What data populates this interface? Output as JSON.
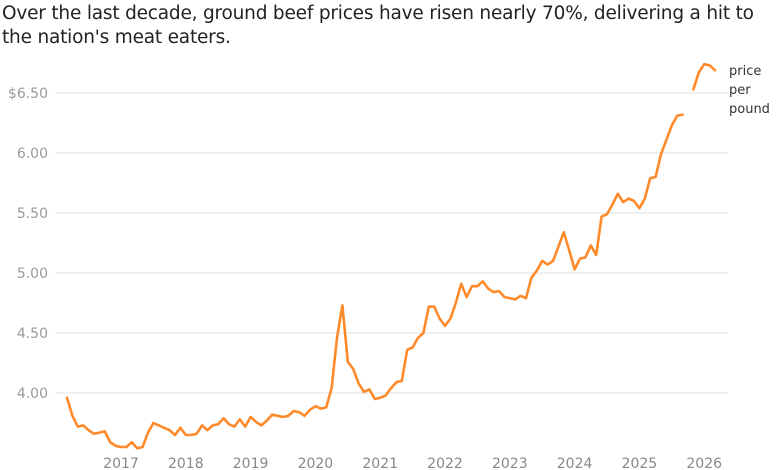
{
  "title": "Over the last decade, ground beef prices have risen nearly 70%, delivering a hit to the nation's meat eaters.",
  "chart_data": {
    "type": "line",
    "title": "Over the last decade, ground beef prices have risen nearly 70%, delivering a hit to the nation's meat eaters.",
    "xlabel": "",
    "ylabel": "",
    "ylim": [
      3.5,
      6.8
    ],
    "grid": true,
    "y_ticks": [
      {
        "value": 6.5,
        "label": "$6.50"
      },
      {
        "value": 6.0,
        "label": "6.00"
      },
      {
        "value": 5.5,
        "label": "5.50"
      },
      {
        "value": 5.0,
        "label": "5.00"
      },
      {
        "value": 4.5,
        "label": "4.50"
      },
      {
        "value": 4.0,
        "label": "4.00"
      }
    ],
    "x_ticks": [
      "2017",
      "2018",
      "2019",
      "2020",
      "2021",
      "2022",
      "2023",
      "2024",
      "2025",
      "2026"
    ],
    "line_color": "#ff8a2b",
    "series": [
      {
        "name": "price per pound",
        "label_lines": [
          "price",
          "per",
          "pound"
        ],
        "start": "2016-03",
        "frequency": "monthly",
        "values": [
          3.96,
          3.81,
          3.72,
          3.73,
          3.69,
          3.66,
          3.67,
          3.68,
          3.59,
          3.56,
          3.55,
          3.55,
          3.59,
          3.54,
          3.55,
          3.67,
          3.75,
          3.73,
          3.71,
          3.69,
          3.65,
          3.71,
          3.65,
          3.65,
          3.66,
          3.73,
          3.69,
          3.73,
          3.74,
          3.79,
          3.74,
          3.72,
          3.78,
          3.72,
          3.8,
          3.76,
          3.73,
          3.77,
          3.82,
          3.81,
          3.8,
          3.81,
          3.85,
          3.84,
          3.81,
          3.86,
          3.89,
          3.87,
          3.88,
          4.04,
          4.46,
          4.73,
          4.26,
          4.2,
          4.08,
          4.01,
          4.03,
          3.95,
          3.96,
          3.98,
          4.04,
          4.09,
          4.1,
          4.36,
          4.38,
          4.46,
          4.5,
          4.72,
          4.72,
          4.62,
          4.56,
          4.62,
          4.75,
          4.91,
          4.8,
          4.89,
          4.89,
          4.93,
          4.87,
          4.84,
          4.85,
          4.8,
          4.79,
          4.78,
          4.81,
          4.79,
          4.96,
          5.02,
          5.1,
          5.07,
          5.1,
          5.22,
          5.34,
          5.19,
          5.03,
          5.12,
          5.13,
          5.23,
          5.15,
          5.47,
          5.49,
          5.57,
          5.66,
          5.59,
          5.62,
          5.6,
          5.54,
          5.62,
          5.79,
          5.8,
          5.99,
          6.11,
          6.23,
          6.31,
          6.32,
          null,
          6.53,
          6.67,
          6.74,
          6.73,
          6.69
        ]
      }
    ]
  }
}
